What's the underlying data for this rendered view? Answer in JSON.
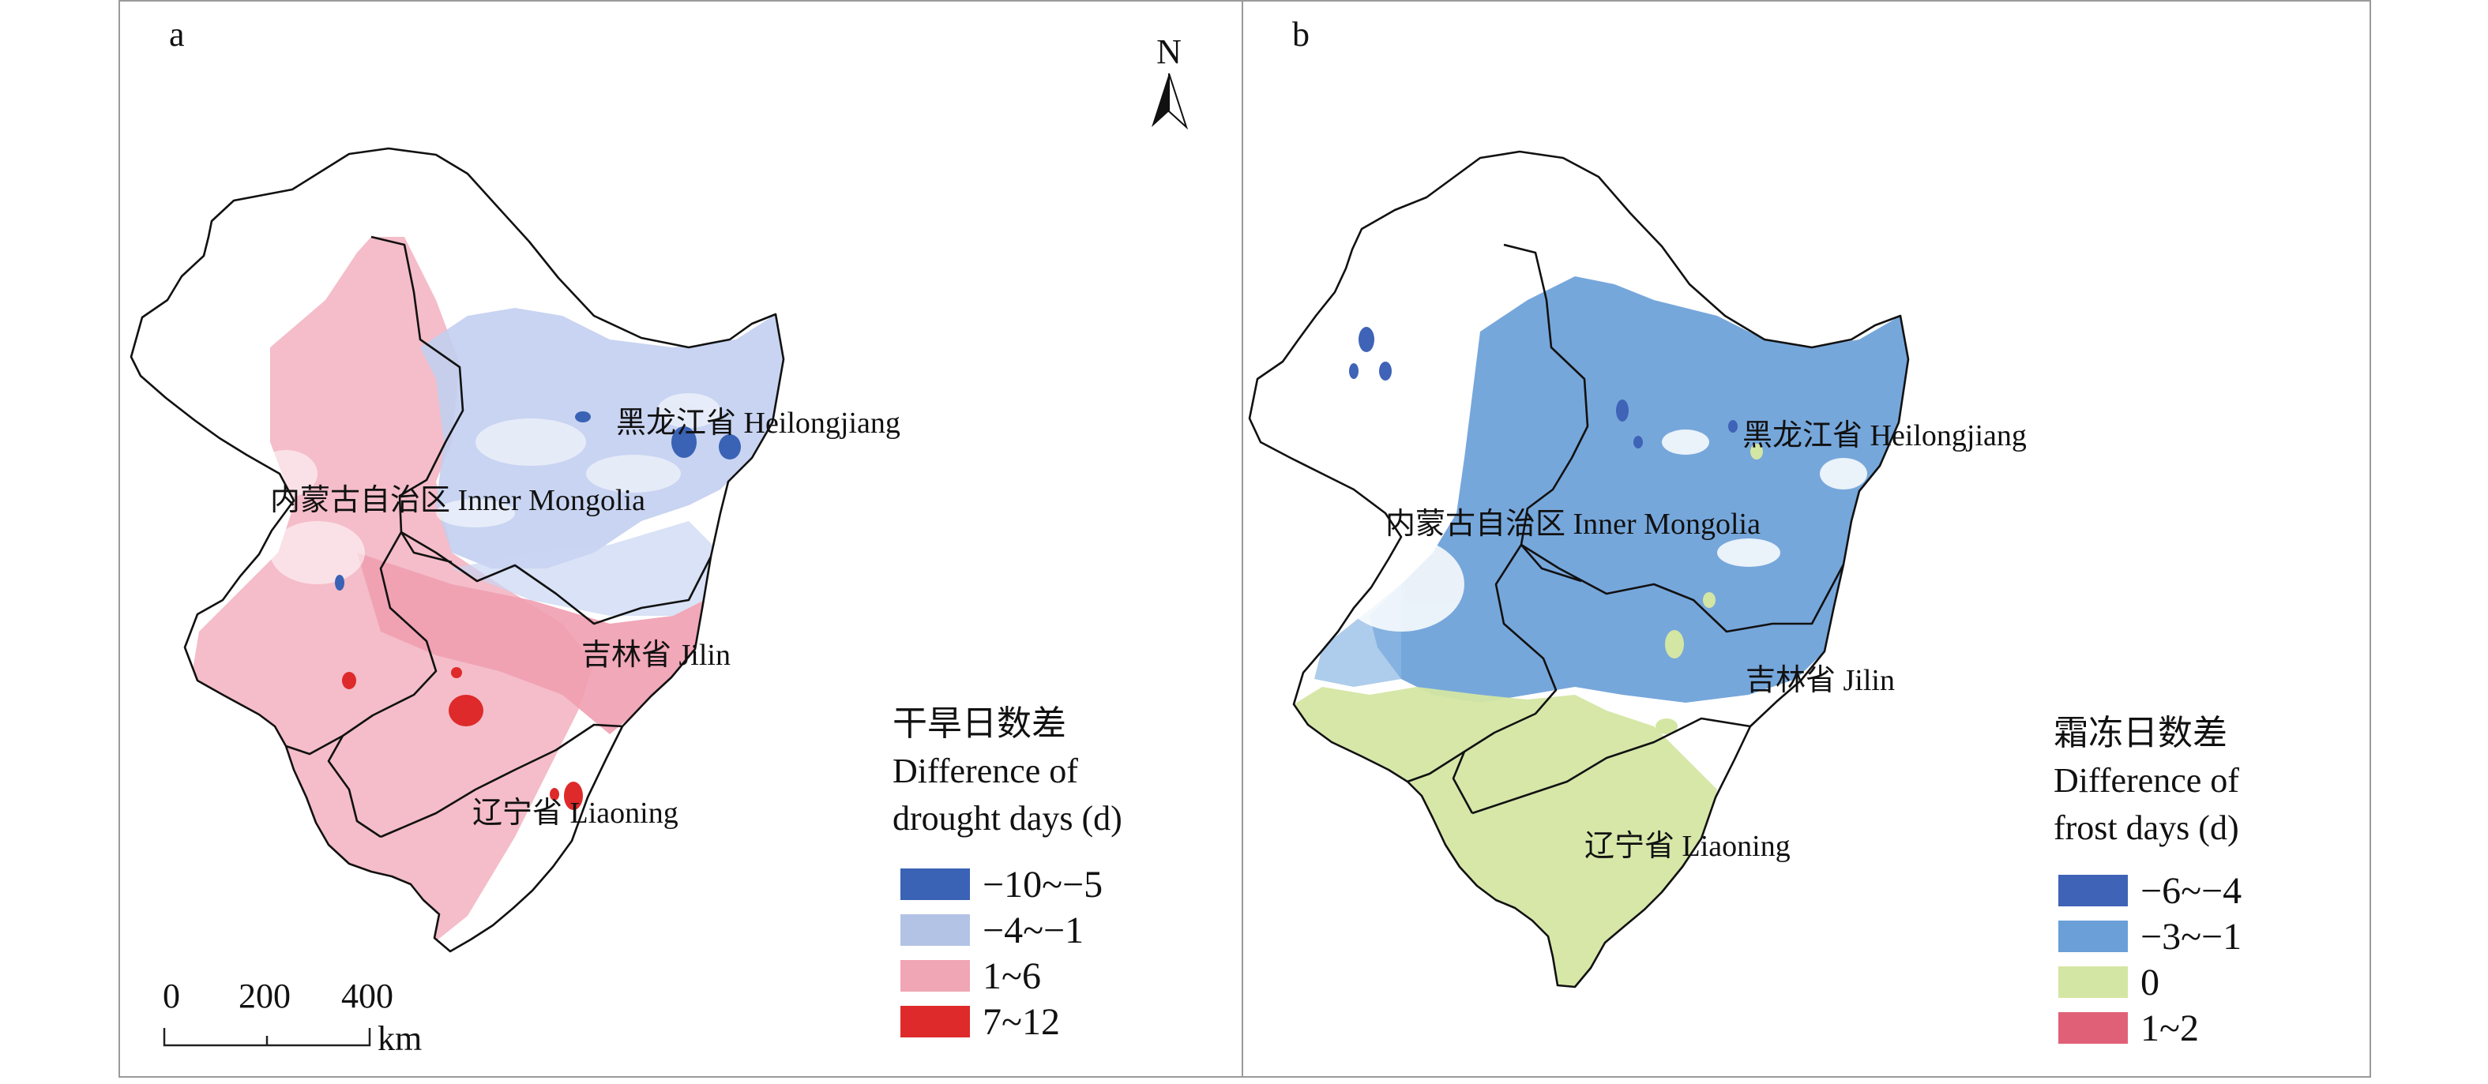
{
  "panel_a": {
    "label": "a",
    "north": "N",
    "regions": {
      "heilongjiang": "黑龙江省 Heilongjiang",
      "inner_mongolia": "内蒙古自治区 Inner Mongolia",
      "jilin": "吉林省 Jilin",
      "liaoning": "辽宁省 Liaoning"
    },
    "legend": {
      "title_cn": "干旱日数差",
      "title_en_1": "Difference of",
      "title_en_2": "drought days (d)",
      "items": [
        {
          "label": "−10~−5",
          "color": "#3a62b5"
        },
        {
          "label": "−4~−1",
          "color": "#b3c3e6"
        },
        {
          "label": "1~6",
          "color": "#f0a6b4"
        },
        {
          "label": "7~12",
          "color": "#de2a2a"
        }
      ]
    },
    "scale": {
      "t0": "0",
      "t1": "200",
      "t2": "400",
      "unit": "km"
    }
  },
  "panel_b": {
    "label": "b",
    "regions": {
      "heilongjiang": "黑龙江省 Heilongjiang",
      "inner_mongolia": "内蒙古自治区 Inner Mongolia",
      "jilin": "吉林省 Jilin",
      "liaoning": "辽宁省 Liaoning"
    },
    "legend": {
      "title_cn": "霜冻日数差",
      "title_en_1": "Difference of",
      "title_en_2": "frost days (d)",
      "items": [
        {
          "label": "−6~−4",
          "color": "#3f63b6"
        },
        {
          "label": "−3~−1",
          "color": "#6a9fd8"
        },
        {
          "label": "0",
          "color": "#d4e6a3"
        },
        {
          "label": "1~2",
          "color": "#e06078"
        }
      ]
    }
  }
}
